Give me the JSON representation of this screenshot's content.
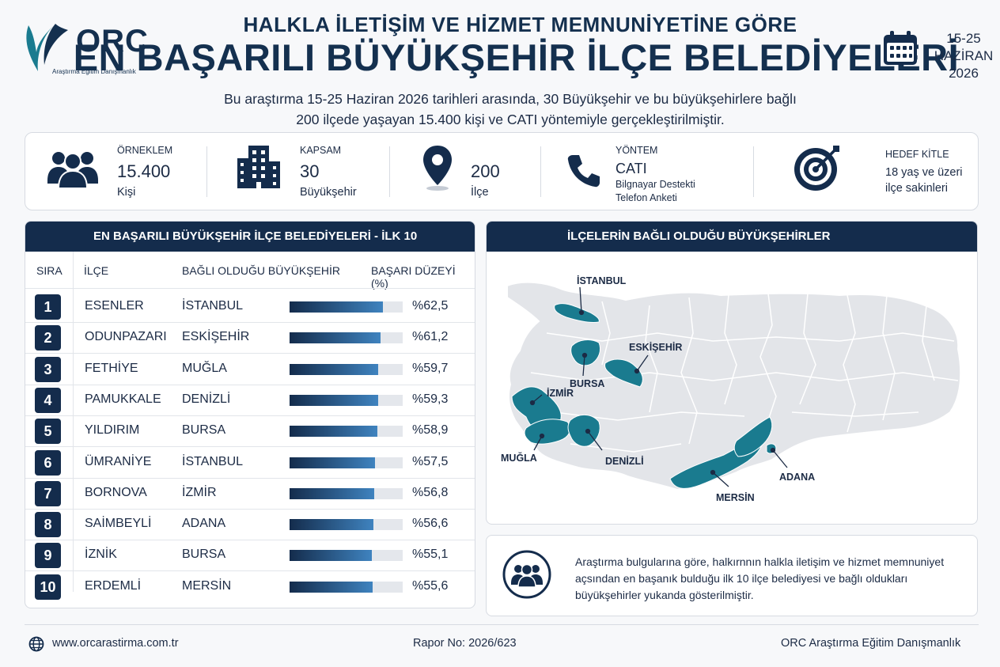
{
  "brand": {
    "logo_text": "ORC",
    "logo_subtitle": "Araştırma Eğitim Danışmanlık"
  },
  "header": {
    "title_top": "HALKLA İLETİŞİM VE HİZMET MEMNUNİYETİNE GÖRE",
    "title_main": "EN BAŞARILI BÜYÜKŞEHİR İLÇE BELEDİYELERİ",
    "subtitle_line1": "Bu araştırma 15-25 Haziran 2026 tarihleri arasında, 30 Büyükşehir ve bu büyükşehirlere bağlı",
    "subtitle_line2": "200 ilçede yaşayan 15.400 kişi ve CATI yöntemiyle gerçekleştirilmiştir.",
    "date_line1": "15-25",
    "date_line2": "HAZİRAN",
    "date_line3": "2026"
  },
  "stats": [
    {
      "label": "ÖRNEKLEM",
      "value": "15.400",
      "unit": "Kişi",
      "icon": "people-icon"
    },
    {
      "label": "KAPSAM",
      "value": "30",
      "unit": "Büyükşehir",
      "icon": "building-icon"
    },
    {
      "label": "",
      "value": "200",
      "unit": "İlçe",
      "icon": "map-pin-icon"
    },
    {
      "label": "YÖNTEM",
      "value": "CATI",
      "unit_line1": "Bilgnayar Destekti",
      "unit_line2": "Telefon Anketi",
      "icon": "phone-icon"
    },
    {
      "label": "HEDEF KİTLE",
      "unit_line1": "18 yaş ve üzeri",
      "unit_line2": "ilçe sakinleri",
      "icon": "target-icon"
    }
  ],
  "ranking": {
    "title": "EN BAŞARILI BÜYÜKŞEHİR İLÇE BELEDİYELERİ - İLK 10",
    "col_rank": "SIRA",
    "col_district": "İLÇE",
    "col_city": "BAĞLI OLDUĞU BÜYÜKŞEHİR",
    "col_score": "BAŞARI DÜZEYİ (%)",
    "rows": [
      {
        "rank": "1",
        "district": "ESENLER",
        "city": "İSTANBUL",
        "score": 62.5,
        "score_text": "%62,5"
      },
      {
        "rank": "2",
        "district": "ODUNPAZARI",
        "city": "ESKİŞEHİR",
        "score": 61.2,
        "score_text": "%61,2"
      },
      {
        "rank": "3",
        "district": "FETHİYE",
        "city": "MUĞLA",
        "score": 59.7,
        "score_text": "%59,7"
      },
      {
        "rank": "4",
        "district": "PAMUKKALE",
        "city": "DENİZLİ",
        "score": 59.3,
        "score_text": "%59,3"
      },
      {
        "rank": "5",
        "district": "YILDIRIM",
        "city": "BURSA",
        "score": 58.9,
        "score_text": "%58,9"
      },
      {
        "rank": "6",
        "district": "ÜMRANİYE",
        "city": "İSTANBUL",
        "score": 57.5,
        "score_text": "%57,5"
      },
      {
        "rank": "7",
        "district": "BORNOVA",
        "city": "İZMİR",
        "score": 56.8,
        "score_text": "%56,8"
      },
      {
        "rank": "8",
        "district": "SAİMBEYLİ",
        "city": "ADANA",
        "score": 56.6,
        "score_text": "%56,6"
      },
      {
        "rank": "9",
        "district": "İZNİK",
        "city": "BURSA",
        "score": 55.1,
        "score_text": "%55,1"
      },
      {
        "rank": "10",
        "district": "ERDEMLİ",
        "city": "MERSİN",
        "score": 55.6,
        "score_text": "%55,6"
      }
    ]
  },
  "map": {
    "title": "İLÇELERİN BAĞLI OLDUĞU BÜYÜKŞEHİRLER",
    "labels": [
      "İSTANBUL",
      "ESKİŞEHİR",
      "BURSA",
      "İZMİR",
      "MUĞLA",
      "DENİZLİ",
      "ADANA",
      "MERSİN"
    ],
    "highlight_color": "#1a7b8f",
    "base_color": "#e3e5e9"
  },
  "note": {
    "line1": "Araştırma bulgularına göre, halkırnnın halkla iletişim ve hizmet memnuniyet",
    "line2": "açsından en başanık bulduğu ilk 10 ilçe belediyesi ve bağlı oldukları",
    "line3": "büyükşehirler yukanda gösterilmiştir."
  },
  "footer": {
    "website": "www.orcarastirma.com.tr",
    "report": "Rapor No: 2026/623",
    "company": "ORC Araştırma Eğitim Danışmanlık"
  },
  "colors": {
    "navy": "#142c4c",
    "teal": "#1a7b8f",
    "bar_end": "#3f83bf"
  }
}
